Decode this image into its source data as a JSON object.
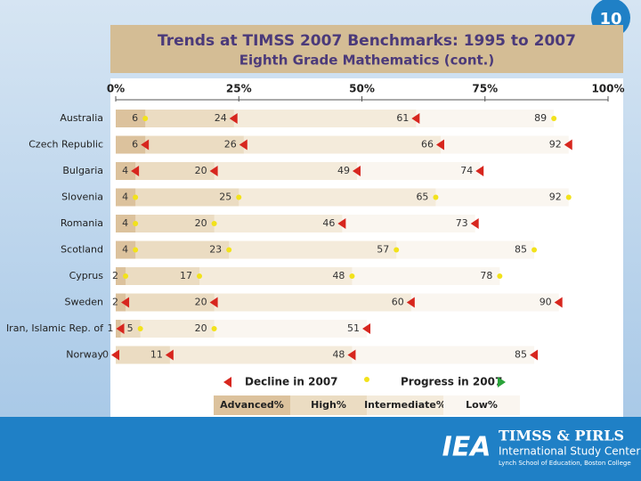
{
  "page_number": "10",
  "footer": {
    "logo": "IEA",
    "line1": "TIMSS & PIRLS",
    "line2": "International Study Center",
    "line3": "Lynch School of Education, Boston College"
  },
  "chart_data": {
    "type": "bar",
    "title": "Trends at TIMSS 2007 Benchmarks: 1995 to 2007",
    "subtitle": "Eighth Grade Mathematics (cont.)",
    "xlim": [
      0,
      100
    ],
    "xticks": [
      {
        "value": 0,
        "label": "0%"
      },
      {
        "value": 25,
        "label": "25%"
      },
      {
        "value": 50,
        "label": "50%"
      },
      {
        "value": 75,
        "label": "75%"
      },
      {
        "value": 100,
        "label": "100%"
      }
    ],
    "categories": [
      "Australia",
      "Czech Republic",
      "Bulgaria",
      "Slovenia",
      "Romania",
      "Scotland",
      "Cyprus",
      "Sweden",
      "Iran, Islamic Rep. of",
      "Norway"
    ],
    "series": [
      {
        "name": "Advanced%",
        "color": "#dcc29d",
        "values": [
          6,
          6,
          4,
          4,
          4,
          4,
          2,
          2,
          1,
          0
        ],
        "markers": [
          "dot",
          "triangle",
          "triangle",
          "dot",
          "dot",
          "dot",
          "dot",
          "triangle",
          "triangle",
          "triangle"
        ]
      },
      {
        "name": "High%",
        "color": "#ebdcc2",
        "values": [
          24,
          26,
          20,
          25,
          20,
          23,
          17,
          20,
          5,
          11
        ],
        "markers": [
          "triangle",
          "triangle",
          "triangle",
          "dot",
          "dot",
          "dot",
          "dot",
          "triangle",
          "dot",
          "triangle"
        ]
      },
      {
        "name": "Intermediate%",
        "color": "#f4ebdb",
        "values": [
          61,
          66,
          49,
          65,
          46,
          57,
          48,
          60,
          20,
          48
        ],
        "markers": [
          "triangle",
          "triangle",
          "triangle",
          "dot",
          "triangle",
          "dot",
          "dot",
          "triangle",
          "dot",
          "triangle"
        ]
      },
      {
        "name": "Low%",
        "color": "#faf6f0",
        "values": [
          89,
          92,
          74,
          92,
          73,
          85,
          78,
          90,
          51,
          85
        ],
        "markers": [
          "dot",
          "triangle",
          "triangle",
          "dot",
          "triangle",
          "dot",
          "dot",
          "triangle",
          "triangle",
          "triangle"
        ]
      }
    ],
    "legend": {
      "decline": "Decline in 2007",
      "progress": "Progress in 2007"
    },
    "marker_colors": {
      "decline": "#d7261e",
      "dot": "#f2e21b",
      "progress": "#2aa33a"
    }
  }
}
